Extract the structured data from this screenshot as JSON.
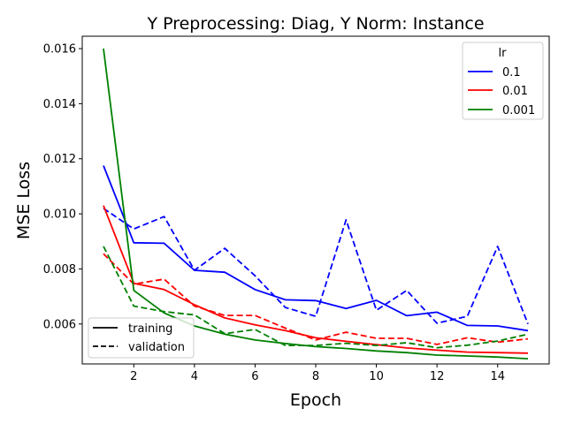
{
  "chart_data": {
    "type": "line",
    "title": "Y Preprocessing: Diag, Y Norm: Instance",
    "xlabel": "Epoch",
    "ylabel": "MSE Loss",
    "xlim": [
      0.3,
      15.7
    ],
    "ylim": [
      0.00455,
      0.01645
    ],
    "xticks": [
      2,
      4,
      6,
      8,
      10,
      12,
      14
    ],
    "xtick_labels": [
      "2",
      "4",
      "6",
      "8",
      "10",
      "12",
      "14"
    ],
    "yticks": [
      0.006,
      0.008,
      0.01,
      0.012,
      0.014,
      0.016
    ],
    "ytick_labels": [
      "0.006",
      "0.008",
      "0.010",
      "0.012",
      "0.014",
      "0.016"
    ],
    "grid": false,
    "legend_lr": {
      "title": "lr",
      "placement": "top-right",
      "entries": [
        {
          "label": "0.1",
          "color": "#0000ff"
        },
        {
          "label": "0.01",
          "color": "#ff0000"
        },
        {
          "label": "0.001",
          "color": "#008000"
        }
      ]
    },
    "legend_style": {
      "placement": "bottom-left",
      "entries": [
        {
          "label": "training",
          "dash": "solid"
        },
        {
          "label": "validation",
          "dash": "dashed"
        }
      ]
    },
    "x": [
      1,
      2,
      3,
      4,
      5,
      6,
      7,
      8,
      9,
      10,
      11,
      12,
      13,
      14,
      15
    ],
    "series": [
      {
        "lr": "0.1",
        "split": "training",
        "color": "#0000ff",
        "dash": "solid",
        "values": [
          0.01175,
          0.00895,
          0.00893,
          0.00795,
          0.00788,
          0.00725,
          0.00688,
          0.00685,
          0.00656,
          0.00686,
          0.0063,
          0.00643,
          0.00595,
          0.00593,
          0.00576
        ]
      },
      {
        "lr": "0.1",
        "split": "validation",
        "color": "#0000ff",
        "dash": "dashed",
        "values": [
          0.0102,
          0.00945,
          0.0099,
          0.00795,
          0.00875,
          0.00775,
          0.0066,
          0.00628,
          0.00978,
          0.0065,
          0.00722,
          0.00603,
          0.00628,
          0.00882,
          0.006
        ]
      },
      {
        "lr": "0.01",
        "split": "training",
        "color": "#ff0000",
        "dash": "solid",
        "values": [
          0.0103,
          0.00748,
          0.00725,
          0.0067,
          0.00622,
          0.00597,
          0.00576,
          0.0055,
          0.00537,
          0.00525,
          0.00513,
          0.00505,
          0.00498,
          0.00496,
          0.00494
        ]
      },
      {
        "lr": "0.01",
        "split": "validation",
        "color": "#ff0000",
        "dash": "dashed",
        "values": [
          0.00855,
          0.00745,
          0.00763,
          0.00665,
          0.00631,
          0.00631,
          0.00585,
          0.00542,
          0.0057,
          0.00548,
          0.00548,
          0.00526,
          0.0055,
          0.00534,
          0.00546
        ]
      },
      {
        "lr": "0.001",
        "split": "training",
        "color": "#008000",
        "dash": "solid",
        "values": [
          0.016,
          0.00722,
          0.0064,
          0.00593,
          0.00563,
          0.00542,
          0.00529,
          0.00518,
          0.00511,
          0.00502,
          0.00496,
          0.00487,
          0.00484,
          0.0048,
          0.00474
        ]
      },
      {
        "lr": "0.001",
        "split": "validation",
        "color": "#008000",
        "dash": "dashed",
        "values": [
          0.00882,
          0.00665,
          0.00645,
          0.00633,
          0.00565,
          0.0058,
          0.00522,
          0.00522,
          0.0053,
          0.00522,
          0.00532,
          0.00514,
          0.00523,
          0.00538,
          0.00563
        ]
      }
    ]
  }
}
